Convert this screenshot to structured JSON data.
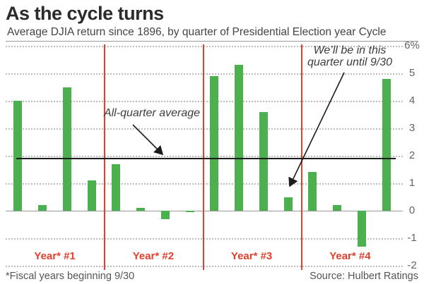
{
  "header": {
    "title": "As the cycle turns",
    "subtitle": "Average DJIA return since 1896, by quarter of Presidential Election year Cycle"
  },
  "annotations": {
    "average_label": "All-quarter average",
    "quarter_note_line1": "We’ll be in this",
    "quarter_note_line2": "quarter until 9/30"
  },
  "footer": {
    "note": "*Fiscal years beginning 9/30",
    "source": "Source: Hulbert Ratings"
  },
  "chart_data": {
    "type": "bar",
    "title": "As the cycle turns",
    "subtitle": "Average DJIA return since 1896, by quarter of Presidential Election year Cycle",
    "categories": [
      "Year* #1",
      "Year* #2",
      "Year* #3",
      "Year* #4"
    ],
    "series": [
      {
        "name": "Year* #1",
        "values": [
          4.0,
          0.2,
          4.5,
          1.1
        ]
      },
      {
        "name": "Year* #2",
        "values": [
          1.7,
          0.1,
          -0.3,
          -0.05
        ]
      },
      {
        "name": "Year* #3",
        "values": [
          4.9,
          5.3,
          3.6,
          0.5
        ]
      },
      {
        "name": "Year* #4",
        "values": [
          1.4,
          0.2,
          -1.3,
          4.8
        ]
      }
    ],
    "all_quarter_average": 1.9,
    "highlighted_bar": {
      "group": "Year* #3",
      "quarter_index": 3,
      "value": 0.5,
      "note": "We’ll be in this quarter until 9/30"
    },
    "ylabel": "",
    "xlabel": "",
    "ylim": [
      -2,
      6
    ],
    "yticks": [
      6,
      5,
      4,
      3,
      2,
      1,
      0,
      -1,
      -2
    ],
    "ytick_labels": [
      "6%",
      "5",
      "4",
      "3",
      "2",
      "1",
      "0",
      "-1",
      "-2"
    ],
    "grid": "horizontal dotted",
    "legend": "none",
    "colors": {
      "bar": "#4db04f",
      "divider": "#e0402e",
      "year_label": "#e0402e",
      "gridline": "#bcbcbc",
      "axis_line": "#9a9a9a",
      "average_line": "#1c1c1c"
    }
  }
}
